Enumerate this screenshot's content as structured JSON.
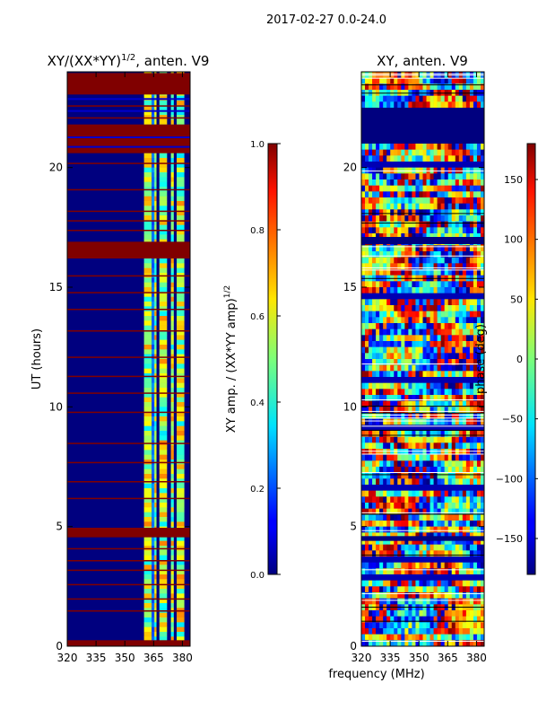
{
  "figure": {
    "suptitle": "2017-02-27 0.0-24.0",
    "xlabel_shared": "frequency (MHz)"
  },
  "chart_data": [
    {
      "type": "heatmap",
      "title": "XY/(XX*YY)",
      "title_exponent": "1/2",
      "title_suffix": ", anten. V9",
      "xlabel": "",
      "ylabel": "UT (hours)",
      "xlim": [
        320,
        384
      ],
      "ylim": [
        0,
        24
      ],
      "xticks": [
        320,
        335,
        350,
        365,
        380
      ],
      "yticks": [
        0,
        5,
        10,
        15,
        20
      ],
      "colormap": "jet",
      "bright_columns_mhz": [
        [
          360,
          364
        ],
        [
          365,
          366.5
        ],
        [
          368,
          372
        ],
        [
          374,
          375.5
        ],
        [
          377,
          381
        ]
      ],
      "flagged_bands_ut": [
        [
          23.05,
          23.95
        ],
        [
          20.6,
          21.8
        ],
        [
          16.2,
          16.9
        ],
        [
          4.55,
          4.95
        ],
        [
          0.0,
          0.25
        ]
      ],
      "thin_flag_lines_ut": [
        22.6,
        22.1,
        20.2,
        19.1,
        18.2,
        17.8,
        17.4,
        15.5,
        14.8,
        14.1,
        13.2,
        12.1,
        11.3,
        10.6,
        9.8,
        8.5,
        7.7,
        6.9,
        6.2,
        4.1,
        3.6,
        3.2,
        2.6,
        2.0,
        1.5
      ]
    },
    {
      "type": "colorbar",
      "label": "XY amp. / (XX*YY amp)",
      "label_exponent": "1/2",
      "range": [
        0.0,
        1.0
      ],
      "ticks": [
        "0.0",
        "0.2",
        "0.4",
        "0.6",
        "0.8",
        "1.0"
      ]
    },
    {
      "type": "heatmap",
      "title": "XY, anten. V9",
      "xlabel": "frequency (MHz)",
      "ylabel": "",
      "xlim": [
        320,
        384
      ],
      "ylim": [
        0,
        24
      ],
      "xticks": [
        320,
        335,
        350,
        365,
        380
      ],
      "yticks": [
        0,
        5,
        10,
        15,
        20
      ],
      "colormap": "jet",
      "flagged_bands_ut": [
        [
          21.0,
          22.5
        ],
        [
          16.8,
          17.1
        ],
        [
          4.4,
          4.6
        ]
      ]
    },
    {
      "type": "colorbar",
      "label": "phase (deg)",
      "range": [
        -180,
        180
      ],
      "ticks": [
        "−150",
        "−100",
        "−50",
        "0",
        "50",
        "100",
        "150"
      ]
    }
  ],
  "colors": {
    "flag_red": "#800000",
    "background_navy": "#00007f",
    "frame": "#000000"
  }
}
